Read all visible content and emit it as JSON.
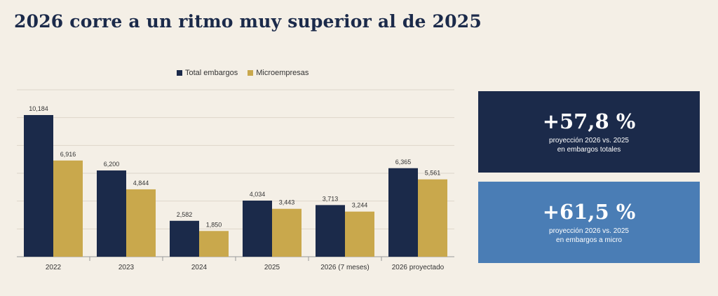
{
  "title": "2026 corre a un ritmo muy superior al de 2025",
  "colors": {
    "series1": "#1b2a4a",
    "series2": "#c9a84c",
    "card1_bg": "#1b2a4a",
    "card2_bg": "#4a7db5"
  },
  "chart_data": {
    "type": "bar",
    "categories": [
      "2022",
      "2023",
      "2024",
      "2025",
      "2026 (7 meses)",
      "2026 proyectado"
    ],
    "series": [
      {
        "name": "Total embargos",
        "values": [
          10184,
          6200,
          2582,
          4034,
          3713,
          6365
        ],
        "labels": [
          "10,184",
          "6,200",
          "2,582",
          "4,034",
          "3,713",
          "6,365"
        ]
      },
      {
        "name": "Microempresas",
        "values": [
          6916,
          4844,
          1850,
          3443,
          3244,
          5561
        ],
        "labels": [
          "6,916",
          "4,844",
          "1,850",
          "3,443",
          "3,244",
          "5,561"
        ]
      }
    ],
    "ylim": [
      0,
      12000
    ],
    "grid": true,
    "legend": "top"
  },
  "cards": [
    {
      "value": "+57,8 %",
      "line1": "proyección 2026 vs. 2025",
      "line2": "en embargos totales"
    },
    {
      "value": "+61,5 %",
      "line1": "proyección 2026 vs. 2025",
      "line2": "en embargos a micro"
    }
  ]
}
